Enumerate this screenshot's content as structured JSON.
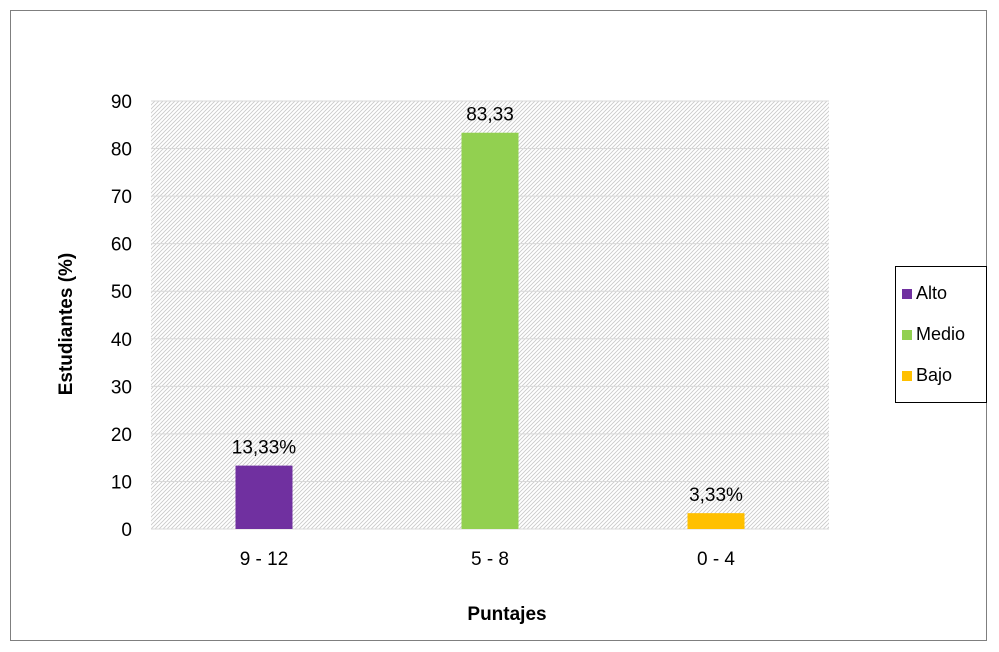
{
  "chart_data": {
    "type": "bar",
    "categories": [
      "9 - 12",
      "5 - 8",
      "0 - 4"
    ],
    "values": [
      13.33,
      83.33,
      3.33
    ],
    "data_labels": [
      "13,33%",
      "83,33",
      "3,33%"
    ],
    "colors": [
      "#7030a0",
      "#92d050",
      "#ffc000"
    ],
    "legend": [
      {
        "name": "Alto",
        "color": "#7030a0"
      },
      {
        "name": "Medio",
        "color": "#92d050"
      },
      {
        "name": "Bajo",
        "color": "#ffc000"
      }
    ],
    "title": "",
    "xlabel": "Puntajes",
    "ylabel": "Estudiantes (%)",
    "ylim": [
      0,
      90
    ],
    "yticks": [
      0,
      10,
      20,
      30,
      40,
      50,
      60,
      70,
      80,
      90
    ],
    "grid": true,
    "legend_position": "right",
    "plot_background": "hatched"
  }
}
